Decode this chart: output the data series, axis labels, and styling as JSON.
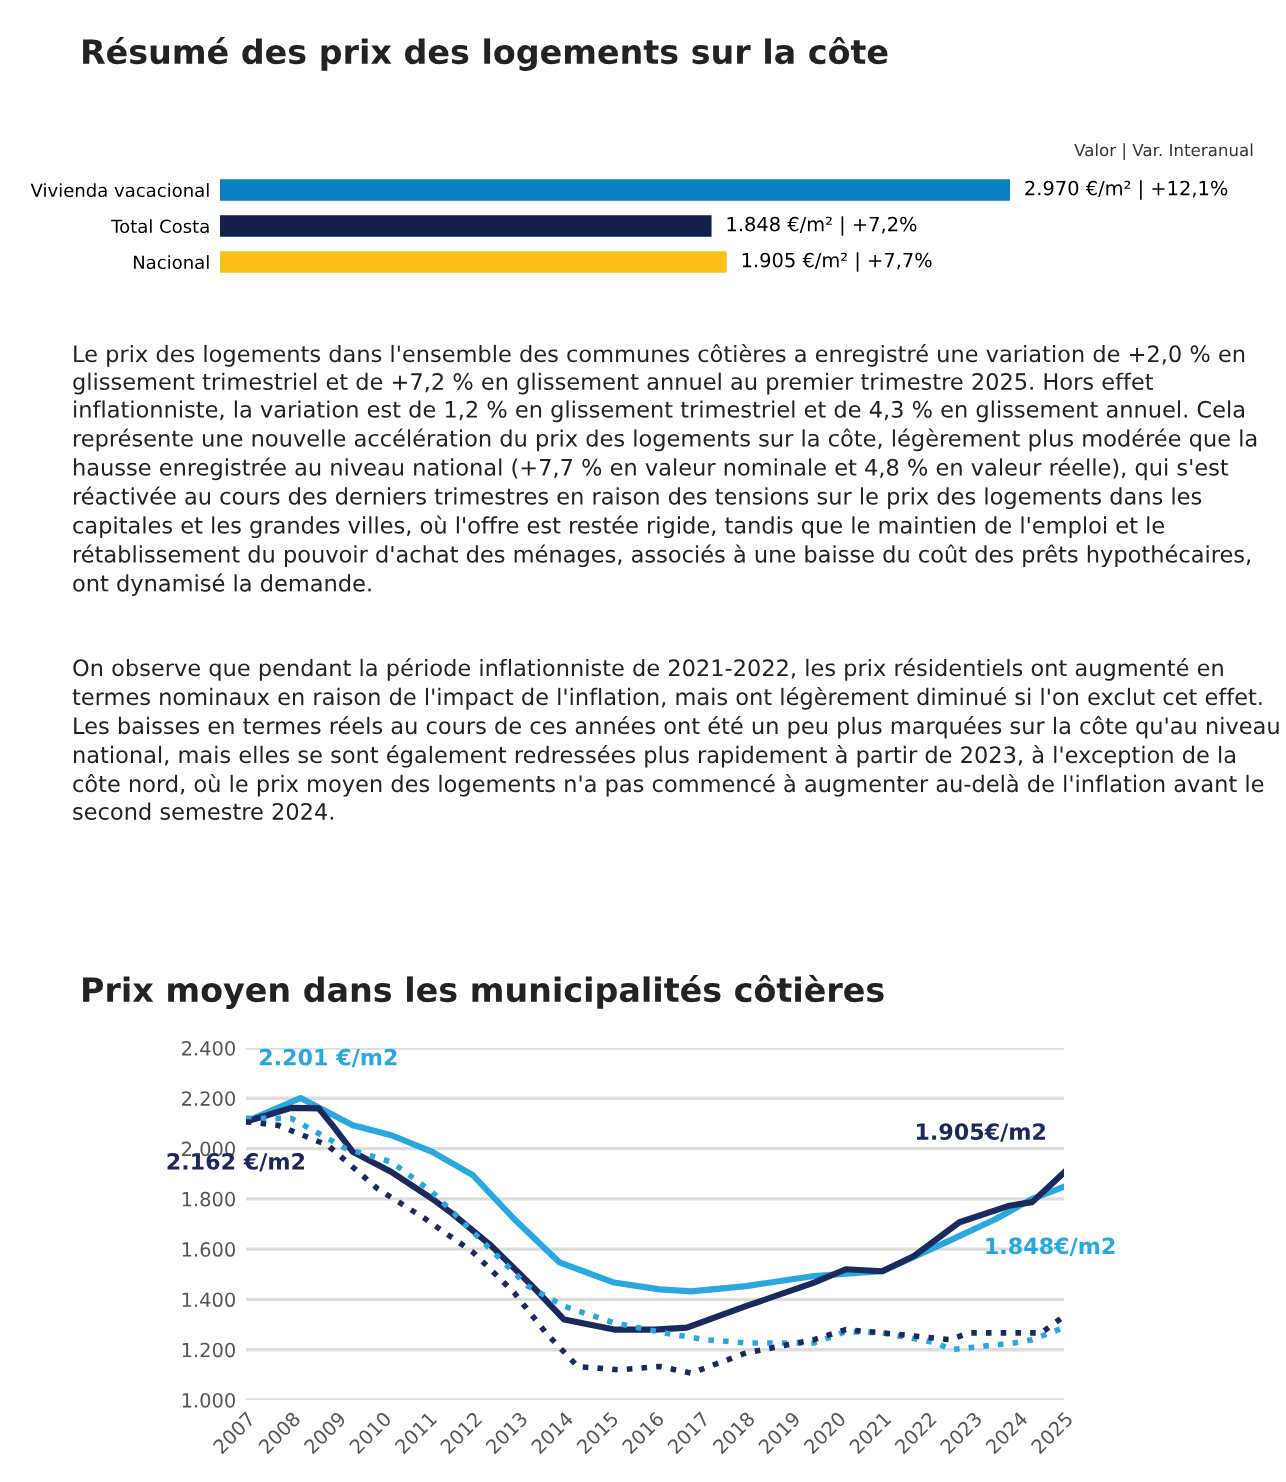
{
  "chart_data": [
    {
      "type": "bar",
      "orientation": "horizontal",
      "title": "Résumé des prix des logements sur la côte",
      "categories": [
        "Vivienda vacacional",
        "Total Costa",
        "Nacional"
      ],
      "values": [
        2970,
        1848,
        1905
      ],
      "colors": [
        "#0a7fc2",
        "#14204a",
        "#fbbf1a"
      ],
      "value_labels": [
        "2.970 €/m² | +12,1%",
        "1.848 €/m² | +7,2%",
        "1.905 €/m² | +7,7%"
      ],
      "annotations": [
        "Valor | Var. Interanual"
      ]
    },
    {
      "type": "other",
      "annotations": [
        "Le prix des logements dans l'ensemble des communes côtières a enregistré une variation de +2,0 % en glissement trimestriel et de +7,2 % en glissement annuel au premier trimestre 2025. Hors effet inflationniste, la variation est de 1,2 % en glissement trimestriel et de 4,3 % en glissement annuel. Cela représente une nouvelle accélération du prix des logements sur la côte, légèrement plus modérée que la hausse enregistrée au niveau national (+7,7 % en valeur nominale et 4,8 % en valeur réelle), qui s'est réactivée au cours des derniers trimestres en raison des tensions sur le prix des logements dans les capitales et les grandes villes, où l'offre est restée rigide, tandis que le maintien de l'emploi et le rétablissement du pouvoir d'achat des ménages, associés à une baisse du coût des prêts hypothécaires, ont dynamisé la demande.",
        "On observe que pendant la période inflationniste de 2021-2022, les prix résidentiels ont augmenté en termes nominaux en raison de l'impact de l'inflation, mais ont légèrement diminué si l'on exclut cet effet. Les baisses en termes réels au cours de ces années ont été un peu plus marquées sur la côte qu'au niveau national, mais elles se sont également redressées plus rapidement à partir de 2023, à l'exception de la côte nord, où le prix moyen des logements n'a pas commencé à augmenter au-delà de l'inflation avant le second semestre 2024."
      ]
    },
    {
      "type": "line",
      "title": "Prix moyen dans les municipalités côtières",
      "xlim": [
        2007,
        2025
      ],
      "xticks": [
        2007,
        2008,
        2009,
        2010,
        2011,
        2012,
        2013,
        2014,
        2015,
        2016,
        2017,
        2018,
        2019,
        2020,
        2021,
        2022,
        2023,
        2024,
        2025
      ],
      "ylim": [
        1000,
        2400
      ],
      "yticks": [
        {
          "value": 1000,
          "label": "1.000"
        },
        {
          "value": 1200,
          "label": "1.200"
        },
        {
          "value": 1400,
          "label": "1.400"
        },
        {
          "value": 1600,
          "label": "1.600"
        },
        {
          "value": 1800,
          "label": "1.800"
        },
        {
          "value": 2000,
          "label": "2.000"
        },
        {
          "value": 2200,
          "label": "2.200"
        },
        {
          "value": 2400,
          "label": "2.400"
        }
      ],
      "grid": "y",
      "series": [
        {
          "color": "#29a8e0",
          "line_style": "solid",
          "x": [
            2007,
            2008.2,
            2009.35,
            2010.2,
            2011.1,
            2012,
            2012.9,
            2013.9,
            2015.1,
            2016.1,
            2016.8,
            2018,
            2019.5,
            2021,
            2022.4,
            2023.5,
            2024.3,
            2025
          ],
          "values": [
            2107,
            2201,
            2093,
            2053,
            1987,
            1893,
            1720,
            1547,
            1467,
            1440,
            1432,
            1453,
            1493,
            1512,
            1627,
            1720,
            1800,
            1848
          ]
        },
        {
          "color": "#1b2a5e",
          "line_style": "solid",
          "x": [
            2007,
            2008,
            2008.6,
            2008.9,
            2009.35,
            2010.2,
            2011.1,
            2011.5,
            2012.4,
            2013.3,
            2014,
            2015.1,
            2016,
            2016.7,
            2018,
            2019.5,
            2020.2,
            2021,
            2021.7,
            2022.7,
            2023.8,
            2024.3,
            2025
          ],
          "values": [
            2107,
            2162,
            2160,
            2093,
            1987,
            1907,
            1800,
            1747,
            1613,
            1453,
            1320,
            1280,
            1280,
            1288,
            1373,
            1467,
            1520,
            1512,
            1573,
            1707,
            1773,
            1787,
            1905
          ]
        },
        {
          "color": "#29a8e0",
          "line_style": "dotted",
          "x": [
            2007,
            2008,
            2009.2,
            2010.2,
            2011.1,
            2012,
            2013.2,
            2014,
            2015.1,
            2016.2,
            2017.1,
            2018,
            2019.5,
            2020.2,
            2021,
            2022.2,
            2022.5,
            2023.9,
            2024.3,
            2025
          ],
          "values": [
            2120,
            2120,
            2000,
            1947,
            1827,
            1667,
            1453,
            1373,
            1307,
            1267,
            1240,
            1227,
            1227,
            1272,
            1267,
            1227,
            1200,
            1227,
            1240,
            1288
          ]
        },
        {
          "color": "#1b2a5e",
          "line_style": "dotted",
          "x": [
            2007,
            2007.7,
            2008.8,
            2009.9,
            2010.95,
            2012,
            2012.9,
            2013.6,
            2014.3,
            2015.2,
            2016.1,
            2016.8,
            2018,
            2019.5,
            2020.2,
            2021,
            2022.5,
            2022.9,
            2023.9,
            2024.5,
            2025
          ],
          "values": [
            2107,
            2093,
            2013,
            1840,
            1720,
            1587,
            1427,
            1267,
            1133,
            1120,
            1133,
            1107,
            1187,
            1240,
            1280,
            1267,
            1240,
            1267,
            1267,
            1267,
            1333
          ]
        }
      ],
      "annotations": [
        {
          "text": "2.201 €/m2",
          "x": 2008.2,
          "y": 2201
        },
        {
          "text": "2.162 €/m2",
          "x": 2008,
          "y": 2162
        },
        {
          "text": "1.905€/m2",
          "x": 2025,
          "y": 1905
        },
        {
          "text": "1.848€/m2",
          "x": 2025,
          "y": 1848
        }
      ]
    }
  ]
}
